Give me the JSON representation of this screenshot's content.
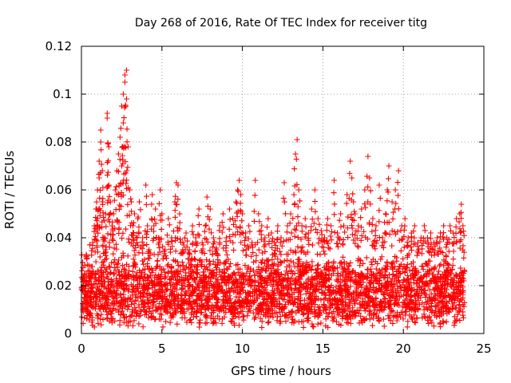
{
  "chart_data": {
    "type": "scatter",
    "title": "Day 268 of 2016, Rate Of TEC Index for receiver titg",
    "xlabel": "GPS time / hours",
    "ylabel": "ROTI / TECUs",
    "xlim": [
      0,
      25
    ],
    "ylim": [
      0,
      0.12
    ],
    "xticks": [
      0,
      5,
      10,
      15,
      20,
      25
    ],
    "xtick_labels": [
      "0",
      "5",
      "10",
      "15",
      "20",
      "25"
    ],
    "yticks": [
      0,
      0.02,
      0.04,
      0.06,
      0.08,
      0.1,
      0.12
    ],
    "ytick_labels": [
      "0",
      "0.02",
      "0.04",
      "0.06",
      "0.08",
      "0.1",
      "0.12"
    ],
    "grid": true,
    "marker": "+",
    "color": "#ff0000",
    "series": [
      {
        "name": "ROTI",
        "points": [
          [
            0.1,
            0.012
          ],
          [
            0.2,
            0.018
          ],
          [
            0.3,
            0.025
          ],
          [
            0.3,
            0.033
          ],
          [
            0.4,
            0.015
          ],
          [
            0.5,
            0.022
          ],
          [
            0.6,
            0.028
          ],
          [
            0.7,
            0.038
          ],
          [
            0.8,
            0.045
          ],
          [
            0.9,
            0.052
          ],
          [
            0.9,
            0.03
          ],
          [
            1.0,
            0.06
          ],
          [
            1.0,
            0.048
          ],
          [
            1.1,
            0.072
          ],
          [
            1.1,
            0.065
          ],
          [
            1.2,
            0.08
          ],
          [
            1.2,
            0.085
          ],
          [
            1.3,
            0.068
          ],
          [
            1.3,
            0.055
          ],
          [
            1.4,
            0.04
          ],
          [
            1.5,
            0.035
          ],
          [
            1.5,
            0.05
          ],
          [
            1.6,
            0.092
          ],
          [
            1.6,
            0.09
          ],
          [
            1.7,
            0.078
          ],
          [
            1.7,
            0.062
          ],
          [
            1.8,
            0.055
          ],
          [
            1.9,
            0.045
          ],
          [
            2.0,
            0.05
          ],
          [
            2.1,
            0.06
          ],
          [
            2.2,
            0.068
          ],
          [
            2.3,
            0.058
          ],
          [
            2.3,
            0.075
          ],
          [
            2.4,
            0.082
          ],
          [
            2.5,
            0.095
          ],
          [
            2.5,
            0.07
          ],
          [
            2.6,
            0.088
          ],
          [
            2.6,
            0.1
          ],
          [
            2.7,
            0.105
          ],
          [
            2.7,
            0.108
          ],
          [
            2.8,
            0.11
          ],
          [
            2.8,
            0.098
          ],
          [
            2.9,
            0.078
          ],
          [
            3.0,
            0.06
          ],
          [
            3.1,
            0.055
          ],
          [
            3.2,
            0.045
          ],
          [
            3.3,
            0.05
          ],
          [
            3.4,
            0.04
          ],
          [
            3.5,
            0.048
          ],
          [
            3.6,
            0.055
          ],
          [
            3.8,
            0.04
          ],
          [
            4.0,
            0.062
          ],
          [
            4.1,
            0.045
          ],
          [
            4.2,
            0.035
          ],
          [
            4.4,
            0.058
          ],
          [
            4.5,
            0.045
          ],
          [
            4.6,
            0.052
          ],
          [
            4.8,
            0.04
          ],
          [
            4.9,
            0.06
          ],
          [
            5.0,
            0.05
          ],
          [
            5.2,
            0.035
          ],
          [
            5.4,
            0.048
          ],
          [
            5.6,
            0.04
          ],
          [
            5.8,
            0.055
          ],
          [
            5.9,
            0.063
          ],
          [
            6.0,
            0.062
          ],
          [
            6.1,
            0.05
          ],
          [
            6.3,
            0.038
          ],
          [
            6.5,
            0.042
          ],
          [
            6.7,
            0.035
          ],
          [
            6.9,
            0.045
          ],
          [
            7.1,
            0.04
          ],
          [
            7.3,
            0.052
          ],
          [
            7.5,
            0.038
          ],
          [
            7.7,
            0.045
          ],
          [
            7.8,
            0.057
          ],
          [
            8.0,
            0.052
          ],
          [
            8.2,
            0.04
          ],
          [
            8.4,
            0.035
          ],
          [
            8.6,
            0.045
          ],
          [
            8.8,
            0.05
          ],
          [
            9.0,
            0.04
          ],
          [
            9.2,
            0.052
          ],
          [
            9.4,
            0.048
          ],
          [
            9.6,
            0.055
          ],
          [
            9.7,
            0.06
          ],
          [
            9.8,
            0.064
          ],
          [
            9.9,
            0.058
          ],
          [
            10.0,
            0.05
          ],
          [
            10.2,
            0.042
          ],
          [
            10.4,
            0.045
          ],
          [
            10.6,
            0.038
          ],
          [
            10.8,
            0.064
          ],
          [
            11.0,
            0.05
          ],
          [
            11.2,
            0.045
          ],
          [
            11.4,
            0.04
          ],
          [
            11.6,
            0.048
          ],
          [
            11.8,
            0.042
          ],
          [
            12.0,
            0.038
          ],
          [
            12.2,
            0.045
          ],
          [
            12.4,
            0.04
          ],
          [
            12.6,
            0.063
          ],
          [
            12.8,
            0.045
          ],
          [
            13.0,
            0.05
          ],
          [
            13.2,
            0.058
          ],
          [
            13.3,
            0.075
          ],
          [
            13.4,
            0.081
          ],
          [
            13.5,
            0.06
          ],
          [
            13.7,
            0.045
          ],
          [
            13.9,
            0.048
          ],
          [
            14.1,
            0.042
          ],
          [
            14.3,
            0.052
          ],
          [
            14.5,
            0.06
          ],
          [
            14.7,
            0.048
          ],
          [
            14.9,
            0.043
          ],
          [
            15.1,
            0.04
          ],
          [
            15.3,
            0.048
          ],
          [
            15.5,
            0.045
          ],
          [
            15.7,
            0.064
          ],
          [
            15.9,
            0.042
          ],
          [
            16.1,
            0.05
          ],
          [
            16.3,
            0.045
          ],
          [
            16.5,
            0.058
          ],
          [
            16.7,
            0.072
          ],
          [
            16.8,
            0.065
          ],
          [
            16.9,
            0.055
          ],
          [
            17.0,
            0.05
          ],
          [
            17.2,
            0.045
          ],
          [
            17.4,
            0.052
          ],
          [
            17.6,
            0.06
          ],
          [
            17.8,
            0.074
          ],
          [
            17.9,
            0.065
          ],
          [
            18.1,
            0.048
          ],
          [
            18.3,
            0.045
          ],
          [
            18.5,
            0.062
          ],
          [
            18.7,
            0.04
          ],
          [
            18.9,
            0.05
          ],
          [
            19.0,
            0.06
          ],
          [
            19.1,
            0.07
          ],
          [
            19.3,
            0.055
          ],
          [
            19.5,
            0.06
          ],
          [
            19.7,
            0.068
          ],
          [
            19.9,
            0.045
          ],
          [
            20.1,
            0.048
          ],
          [
            20.3,
            0.04
          ],
          [
            20.5,
            0.042
          ],
          [
            20.7,
            0.045
          ],
          [
            20.9,
            0.038
          ],
          [
            21.1,
            0.04
          ],
          [
            21.3,
            0.045
          ],
          [
            21.5,
            0.04
          ],
          [
            21.7,
            0.042
          ],
          [
            21.9,
            0.038
          ],
          [
            22.1,
            0.04
          ],
          [
            22.3,
            0.042
          ],
          [
            22.5,
            0.045
          ],
          [
            22.7,
            0.04
          ],
          [
            22.9,
            0.045
          ],
          [
            23.1,
            0.042
          ],
          [
            23.3,
            0.048
          ],
          [
            23.5,
            0.05
          ],
          [
            23.6,
            0.054
          ],
          [
            23.7,
            0.045
          ]
        ],
        "background_band": {
          "x_range": [
            0.0,
            23.8
          ],
          "y_range": [
            0.002,
            0.032
          ],
          "note": "dense cloud of points filling the lower band across the whole day"
        }
      }
    ]
  }
}
